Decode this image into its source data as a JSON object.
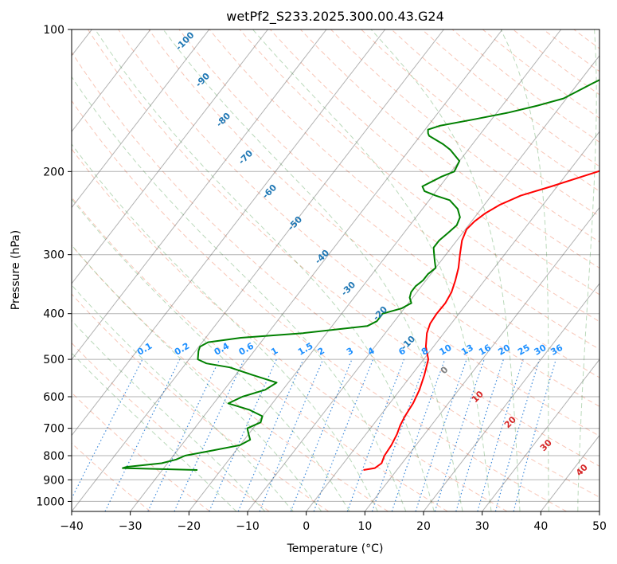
{
  "chart_data": {
    "type": "line",
    "title": "wetPf2_S233.2025.300.00.43.G24",
    "xlabel": "Temperature (°C)",
    "ylabel": "Pressure (hPa)",
    "xlim": [
      -40,
      50
    ],
    "ylim": [
      1050,
      100
    ],
    "y_scale": "log",
    "grid": true,
    "x_ticks": [
      -40,
      -30,
      -20,
      -10,
      0,
      10,
      20,
      30,
      40,
      50
    ],
    "y_ticks": [
      1000,
      900,
      800,
      700,
      600,
      500,
      400,
      300,
      200,
      100
    ],
    "skew_diagram": "skew-T log-P",
    "series": [
      {
        "color": "#ff0000",
        "pressure": [
          858,
          850,
          830,
          800,
          760,
          720,
          690,
          660,
          620,
          580,
          540,
          500,
          470,
          440,
          420,
          400,
          380,
          360,
          340,
          320,
          300,
          280,
          265,
          255,
          245,
          235,
          225,
          215,
          200,
          185,
          170,
          160,
          150,
          140,
          130,
          120,
          110,
          103,
          100
        ],
        "temperature": [
          4.3,
          6.0,
          6.5,
          6.0,
          5.8,
          5.3,
          4.7,
          4.3,
          4.0,
          3.3,
          2.2,
          0.8,
          -1.3,
          -2.9,
          -3.6,
          -3.8,
          -3.7,
          -4.1,
          -5.0,
          -6.1,
          -7.6,
          -9.1,
          -9.8,
          -9.5,
          -8.7,
          -7.3,
          -5.0,
          -1.0,
          5.0,
          11.0,
          16.0,
          18.0,
          20.0,
          22.0,
          23.7,
          26.0,
          29.5,
          31.5,
          32.5
        ]
      },
      {
        "color": "#008000",
        "pressure": [
          858,
          850,
          845,
          830,
          815,
          800,
          780,
          760,
          740,
          720,
          700,
          680,
          660,
          640,
          620,
          600,
          580,
          560,
          540,
          520,
          510,
          500,
          490,
          480,
          470,
          460,
          450,
          440,
          425,
          415,
          410,
          400,
          390,
          380,
          370,
          360,
          350,
          340,
          330,
          320,
          310,
          300,
          290,
          280,
          270,
          260,
          250,
          240,
          230,
          225,
          220,
          215,
          205,
          200,
          190,
          180,
          175,
          170,
          168,
          166,
          163,
          160,
          155,
          150,
          145,
          140,
          130,
          120,
          110,
          105,
          100
        ],
        "temperature": [
          -24.0,
          -37.0,
          -36.5,
          -31.0,
          -29.0,
          -28.0,
          -24.0,
          -20.0,
          -19.0,
          -20.0,
          -21.0,
          -19.5,
          -20.0,
          -23.0,
          -27.5,
          -26.0,
          -23.0,
          -22.0,
          -27.0,
          -32.0,
          -36.5,
          -38.5,
          -39.0,
          -39.5,
          -39.8,
          -39.0,
          -34.0,
          -24.0,
          -14.0,
          -13.0,
          -13.0,
          -13.0,
          -10.5,
          -9.5,
          -10.5,
          -11.0,
          -11.0,
          -10.5,
          -10.5,
          -10.0,
          -11.0,
          -12.0,
          -13.0,
          -13.0,
          -12.5,
          -12.0,
          -12.5,
          -14.0,
          -16.5,
          -19.5,
          -22.0,
          -23.0,
          -21.0,
          -19.5,
          -20.0,
          -23.0,
          -25.0,
          -27.5,
          -28.5,
          -29.0,
          -29.5,
          -28.0,
          -23.0,
          -18.0,
          -14.0,
          -10.5,
          -7.5,
          -4.0,
          -2.0,
          -0.5,
          0.5
        ]
      }
    ],
    "dry_adiabat_labels": [
      "-100",
      "-90",
      "-80",
      "-70",
      "-60",
      "-50",
      "-40",
      "-30",
      "-20",
      "-10"
    ],
    "mixing_ratio_labels": [
      "0.1",
      "0.2",
      "0.4",
      "0.6",
      "1",
      "1.5",
      "2",
      "3",
      "4",
      "6",
      "8",
      "10",
      "13",
      "16",
      "20",
      "25",
      "30",
      "36"
    ],
    "moist_adiabat_labels": [
      "0",
      "10",
      "20",
      "30",
      "40"
    ],
    "colors": {
      "temperature_line": "#ff0000",
      "dewpoint_line": "#008000",
      "dry_adiabat": "#f08060",
      "moist_adiabat": "#66aa66",
      "mixing_ratio": "#1f77d4",
      "isotherm": "#555555",
      "isobar": "#555555",
      "dry_label": "#1f77b4",
      "mixing_label": "#1e90ff",
      "moist_label_zero": "#808080",
      "moist_label": "#d62728"
    }
  }
}
